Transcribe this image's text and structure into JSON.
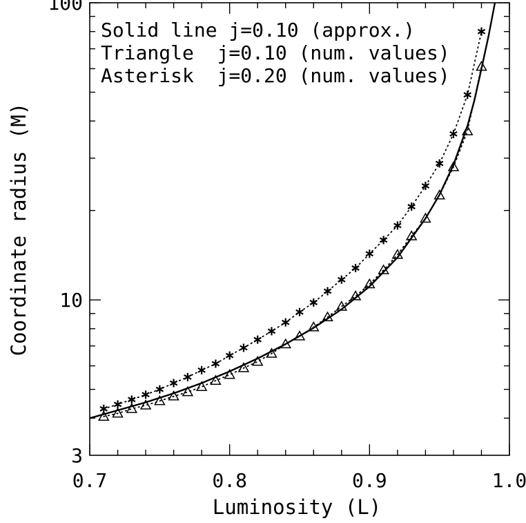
{
  "chart_data": {
    "type": "line",
    "xlabel": "Luminosity (L)",
    "ylabel": "Coordinate radius (M)",
    "xlim": [
      0.7,
      1.0
    ],
    "ylim": [
      3,
      100
    ],
    "yscale": "log",
    "grid": false,
    "x_ticks": [
      "0.7",
      "0.8",
      "0.9",
      "1.0"
    ],
    "y_ticks": [
      "3",
      "10",
      "100"
    ],
    "legend": {
      "placement": "top-left",
      "entries": [
        "Solid line j=0.10 (approx.)",
        "Triangle  j=0.10 (num. values)",
        "Asterisk  j=0.20 (num. values)"
      ]
    },
    "series": [
      {
        "style": "solid",
        "x": [
          0.7,
          0.72,
          0.74,
          0.76,
          0.78,
          0.8,
          0.82,
          0.84,
          0.86,
          0.88,
          0.9,
          0.92,
          0.94,
          0.95,
          0.96,
          0.97,
          0.975,
          0.98,
          0.985,
          0.99
        ],
        "values": [
          4.0,
          4.25,
          4.52,
          4.85,
          5.25,
          5.75,
          6.35,
          7.1,
          8.05,
          9.3,
          11.1,
          13.9,
          18.8,
          22.6,
          28.5,
          38.5,
          47,
          60,
          77,
          102
        ]
      },
      {
        "style": "triangle-dotted",
        "x": [
          0.71,
          0.72,
          0.73,
          0.74,
          0.75,
          0.76,
          0.77,
          0.78,
          0.79,
          0.8,
          0.81,
          0.82,
          0.83,
          0.84,
          0.85,
          0.86,
          0.87,
          0.88,
          0.89,
          0.9,
          0.91,
          0.92,
          0.93,
          0.94,
          0.95,
          0.96,
          0.97,
          0.98
        ],
        "values": [
          4.05,
          4.15,
          4.3,
          4.42,
          4.57,
          4.74,
          4.9,
          5.1,
          5.35,
          5.6,
          5.9,
          6.2,
          6.6,
          7.1,
          7.55,
          8.1,
          8.75,
          9.5,
          10.3,
          11.3,
          12.6,
          14.2,
          16.4,
          18.8,
          22.5,
          28.0,
          37.0,
          61.0
        ]
      },
      {
        "style": "asterisk-dotted",
        "x": [
          0.71,
          0.72,
          0.73,
          0.74,
          0.75,
          0.76,
          0.77,
          0.78,
          0.79,
          0.8,
          0.81,
          0.82,
          0.83,
          0.84,
          0.85,
          0.86,
          0.87,
          0.88,
          0.89,
          0.9,
          0.91,
          0.92,
          0.93,
          0.94,
          0.95,
          0.96,
          0.97,
          0.98
        ],
        "values": [
          4.3,
          4.45,
          4.62,
          4.8,
          5.0,
          5.25,
          5.5,
          5.8,
          6.1,
          6.5,
          6.9,
          7.35,
          7.85,
          8.4,
          9.1,
          9.8,
          10.7,
          11.7,
          12.8,
          14.3,
          15.9,
          17.8,
          20.6,
          24.2,
          28.8,
          36.2,
          49.0,
          80.0
        ]
      }
    ]
  }
}
